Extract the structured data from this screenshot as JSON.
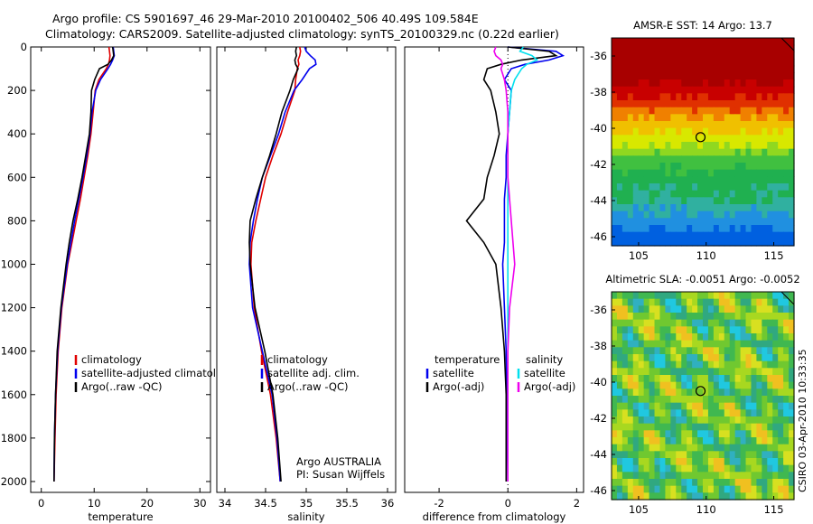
{
  "header": {
    "line1": "Argo profile: CS 5901697_46 29-Mar-2010 20100402_506 40.49S 109.584E",
    "line2": "Climatology: CARS2009. Satellite-adjusted climatology: synTS_20100329.nc (0.22d earlier)"
  },
  "colors": {
    "red": "#e00000",
    "blue": "#0000ee",
    "black": "#000000",
    "cyan": "#00e0ee",
    "magenta": "#ee00ee"
  },
  "chart_data": [
    {
      "id": "temperature",
      "type": "line",
      "xlabel": "temperature",
      "xlim": [
        -2,
        32
      ],
      "ylim": [
        0,
        2050
      ],
      "xticks": [
        0,
        10,
        20,
        30
      ],
      "yticks": [
        0,
        200,
        400,
        600,
        800,
        1000,
        1200,
        1400,
        1600,
        1800,
        2000
      ],
      "depth": [
        0,
        20,
        40,
        60,
        80,
        100,
        150,
        200,
        300,
        400,
        500,
        600,
        700,
        800,
        900,
        1000,
        1200,
        1400,
        1600,
        1800,
        2000
      ],
      "series": [
        {
          "name": "climatology",
          "color": "red",
          "values": [
            12.8,
            12.9,
            13.0,
            12.9,
            12.7,
            12.3,
            10.9,
            10.2,
            9.8,
            9.4,
            8.8,
            8.1,
            7.4,
            6.6,
            5.8,
            5.0,
            3.9,
            3.2,
            2.8,
            2.6,
            2.4
          ]
        },
        {
          "name": "satellite-adjusted climatology",
          "color": "blue",
          "values": [
            13.6,
            13.7,
            13.8,
            13.5,
            13.1,
            12.6,
            11.2,
            10.3,
            9.6,
            9.2,
            8.6,
            7.9,
            7.1,
            6.3,
            5.6,
            4.9,
            3.8,
            3.1,
            2.7,
            2.5,
            2.4
          ]
        },
        {
          "name": "Argo(..raw -QC)",
          "color": "black",
          "values": [
            13.5,
            13.6,
            13.7,
            13.3,
            12.6,
            11.0,
            10.1,
            9.5,
            9.4,
            9.1,
            8.4,
            7.7,
            6.9,
            6.0,
            5.3,
            4.7,
            3.7,
            3.0,
            2.7,
            2.5,
            2.4
          ]
        }
      ],
      "legend": [
        "climatology",
        "satellite-adjusted climatology",
        "Argo(..raw -QC)"
      ],
      "legend_position": "bottom-right"
    },
    {
      "id": "salinity",
      "type": "line",
      "xlabel": "salinity",
      "xlim": [
        33.9,
        36.1
      ],
      "ylim": [
        0,
        2050
      ],
      "xticks": [
        34,
        34.5,
        35,
        35.5,
        36
      ],
      "depth": [
        0,
        20,
        40,
        60,
        80,
        100,
        150,
        200,
        300,
        400,
        500,
        600,
        700,
        800,
        900,
        1000,
        1200,
        1400,
        1600,
        1800,
        2000
      ],
      "series": [
        {
          "name": "climatology",
          "color": "red",
          "values": [
            34.92,
            34.93,
            34.92,
            34.9,
            34.91,
            34.89,
            34.87,
            34.86,
            34.77,
            34.69,
            34.59,
            34.5,
            34.44,
            34.38,
            34.33,
            34.32,
            34.36,
            34.45,
            34.56,
            34.63,
            34.68
          ]
        },
        {
          "name": "satellite adj. clim.",
          "color": "blue",
          "values": [
            34.98,
            35.0,
            35.05,
            35.11,
            35.12,
            35.04,
            34.95,
            34.85,
            34.74,
            34.66,
            34.56,
            34.46,
            34.4,
            34.35,
            34.31,
            34.3,
            34.34,
            34.46,
            34.58,
            34.64,
            34.68
          ]
        },
        {
          "name": "Argo(..raw -QC)",
          "color": "black",
          "values": [
            34.88,
            34.87,
            34.88,
            34.86,
            34.87,
            34.9,
            34.84,
            34.8,
            34.7,
            34.63,
            34.55,
            34.46,
            34.38,
            34.31,
            34.3,
            34.31,
            34.37,
            34.49,
            34.59,
            34.65,
            34.69
          ]
        }
      ],
      "legend": [
        "climatology",
        "satellite adj. clim.",
        "Argo(..raw -QC)"
      ],
      "legend_position": "bottom-right",
      "annotation": [
        "Argo AUSTRALIA",
        "PI: Susan Wijffels"
      ]
    },
    {
      "id": "difference",
      "type": "line",
      "xlabel": "difference from climatology",
      "xlim": [
        -3.0,
        2.2
      ],
      "ylim": [
        0,
        2050
      ],
      "xticks": [
        -2,
        0,
        2
      ],
      "zero_line": 0,
      "depth": [
        0,
        20,
        40,
        60,
        80,
        100,
        150,
        200,
        300,
        400,
        500,
        600,
        700,
        800,
        900,
        1000,
        1200,
        1400,
        1600,
        1800,
        2000
      ],
      "series": [
        {
          "name": "temperature satellite",
          "color": "blue",
          "values": [
            0.0,
            1.4,
            1.6,
            1.2,
            0.5,
            0.1,
            -0.1,
            0.1,
            0.05,
            0.0,
            -0.05,
            -0.05,
            -0.1,
            -0.1,
            -0.1,
            -0.15,
            -0.1,
            -0.05,
            -0.03,
            -0.02,
            0.0
          ]
        },
        {
          "name": "temperature Argo(-adj)",
          "color": "black",
          "values": [
            0.0,
            1.2,
            1.4,
            0.4,
            -0.2,
            -0.6,
            -0.7,
            -0.5,
            -0.35,
            -0.25,
            -0.4,
            -0.6,
            -0.7,
            -1.2,
            -0.7,
            -0.35,
            -0.2,
            -0.1,
            -0.05,
            -0.05,
            -0.05
          ]
        },
        {
          "name": "salinity satellite",
          "color": "cyan",
          "values": [
            0.45,
            0.35,
            0.7,
            0.85,
            0.55,
            0.4,
            0.2,
            0.1,
            0.05,
            0.0,
            0.0,
            0.0,
            0.0,
            0.0,
            0.0,
            0.0,
            0.0,
            0.0,
            0.0,
            0.0,
            0.0
          ]
        },
        {
          "name": "salinity Argo(-adj)",
          "color": "magenta",
          "values": [
            -0.35,
            -0.4,
            -0.35,
            -0.2,
            -0.15,
            -0.2,
            -0.1,
            -0.05,
            0.0,
            0.0,
            0.0,
            0.0,
            0.05,
            0.1,
            0.15,
            0.2,
            0.05,
            0.0,
            0.0,
            0.0,
            0.0
          ]
        }
      ],
      "legend_temperature": {
        "title": "temperature",
        "items": [
          "satellite",
          "Argo(-adj)"
        ]
      },
      "legend_salinity": {
        "title": "salinity",
        "items": [
          "satellite",
          "Argo(-adj)"
        ]
      }
    },
    {
      "id": "sst-map",
      "type": "heatmap",
      "title": "AMSR-E SST: 14 Argo: 13.7",
      "xlim": [
        103,
        116.5
      ],
      "ylim": [
        -46.5,
        -35
      ],
      "xticks": [
        105,
        110,
        115
      ],
      "yticks": [
        -36,
        -38,
        -40,
        -42,
        -44,
        -46
      ],
      "marker": {
        "lon": 109.584,
        "lat": -40.49
      }
    },
    {
      "id": "sla-map",
      "type": "heatmap",
      "title": "Altimetric SLA: -0.0051 Argo: -0.0052",
      "xlim": [
        103,
        116.5
      ],
      "ylim": [
        -46.5,
        -35
      ],
      "xticks": [
        105,
        110,
        115
      ],
      "yticks": [
        -36,
        -38,
        -40,
        -42,
        -44,
        -46
      ],
      "marker": {
        "lon": 109.584,
        "lat": -40.49
      }
    }
  ],
  "footer": {
    "stamp": "CSIRO 03-Apr-2010 10:33:35"
  }
}
